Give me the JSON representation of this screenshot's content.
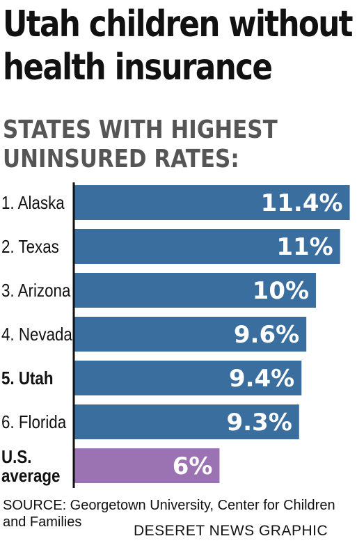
{
  "header": {
    "title_line1": "Utah children without",
    "title_line2": "health insurance",
    "subtitle_line1": "STATES WITH HIGHEST",
    "subtitle_line2": "UNINSURED RATES:"
  },
  "colors": {
    "bar": "#3a6e9f",
    "highlight_bar": "#9b72b2",
    "axis": "#111111"
  },
  "chart_data": {
    "type": "bar",
    "orientation": "horizontal",
    "categories": [
      "1. Alaska",
      "2. Texas",
      "3. Arizona",
      "4. Nevada",
      "5. Utah",
      "6. Florida",
      "U.S. average"
    ],
    "values": [
      11.4,
      11,
      10,
      9.6,
      9.4,
      9.3,
      6
    ],
    "value_labels": [
      "11.4%",
      "11%",
      "10%",
      "9.6%",
      "9.4%",
      "9.3%",
      "6%"
    ],
    "bold_categories": [
      "5. Utah",
      "U.S. average"
    ],
    "highlight_category": "U.S. average",
    "xlim": [
      0,
      11.6
    ],
    "title": "Utah children without health insurance",
    "subtitle": "STATES WITH HIGHEST UNINSURED RATES:",
    "xlabel": "",
    "ylabel": "",
    "grid": false,
    "legend": "none"
  },
  "footer": {
    "source": "SOURCE: Georgetown University, Center for Children and Families",
    "credit": "DESERET NEWS GRAPHIC"
  }
}
